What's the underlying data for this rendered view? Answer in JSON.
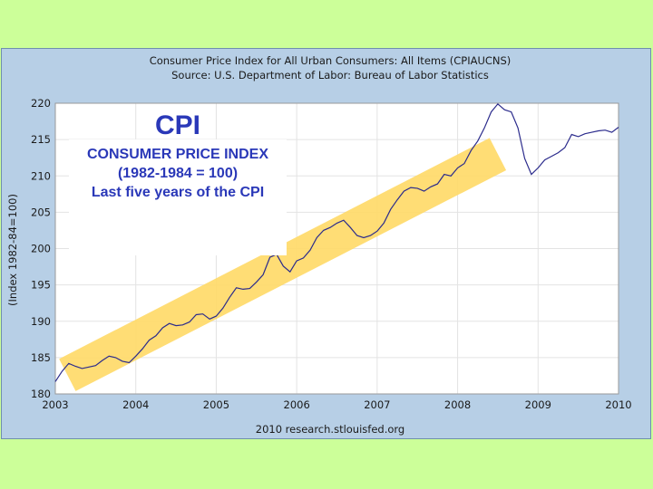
{
  "chart_data": {
    "type": "line",
    "title": "Consumer Price Index for All Urban Consumers: All Items (CPIAUCNS)",
    "subtitle": "Source: U.S. Department of Labor: Bureau of Labor Statistics",
    "ylabel": "(Index 1982-84=100)",
    "xlabel": "",
    "source_note": "2010 research.stlouisfed.org",
    "xlim": [
      2003,
      2010
    ],
    "ylim": [
      180,
      220
    ],
    "x_ticks": [
      "2003",
      "2004",
      "2005",
      "2006",
      "2007",
      "2008",
      "2009",
      "2010"
    ],
    "y_ticks": [
      "180",
      "185",
      "190",
      "195",
      "200",
      "205",
      "210",
      "215",
      "220"
    ],
    "grid": true,
    "annotation": {
      "title": "CPI",
      "lines": [
        "CONSUMER PRICE INDEX",
        "(1982-1984 = 100)",
        "Last five years of the CPI"
      ]
    },
    "trend_band": {
      "color": "#ffd966",
      "x": [
        2003.15,
        2008.5
      ],
      "y": [
        182.6,
        213.0
      ]
    },
    "series": [
      {
        "color": "#2b2b8c",
        "x": [
          2003.0,
          2003.083,
          2003.167,
          2003.25,
          2003.333,
          2003.417,
          2003.5,
          2003.583,
          2003.667,
          2003.75,
          2003.833,
          2003.917,
          2004.0,
          2004.083,
          2004.167,
          2004.25,
          2004.333,
          2004.417,
          2004.5,
          2004.583,
          2004.667,
          2004.75,
          2004.833,
          2004.917,
          2005.0,
          2005.083,
          2005.167,
          2005.25,
          2005.333,
          2005.417,
          2005.5,
          2005.583,
          2005.667,
          2005.75,
          2005.833,
          2005.917,
          2006.0,
          2006.083,
          2006.167,
          2006.25,
          2006.333,
          2006.417,
          2006.5,
          2006.583,
          2006.667,
          2006.75,
          2006.833,
          2006.917,
          2007.0,
          2007.083,
          2007.167,
          2007.25,
          2007.333,
          2007.417,
          2007.5,
          2007.583,
          2007.667,
          2007.75,
          2007.833,
          2007.917,
          2008.0,
          2008.083,
          2008.167,
          2008.25,
          2008.333,
          2008.417,
          2008.5,
          2008.583,
          2008.667,
          2008.75,
          2008.833,
          2008.917,
          2009.0,
          2009.083,
          2009.167,
          2009.25,
          2009.333,
          2009.417,
          2009.5,
          2009.583,
          2009.667,
          2009.75,
          2009.833,
          2009.917,
          2010.0
        ],
        "y": [
          181.7,
          183.1,
          184.2,
          183.8,
          183.5,
          183.7,
          183.9,
          184.6,
          185.2,
          185.0,
          184.5,
          184.3,
          185.2,
          186.2,
          187.4,
          188.0,
          189.1,
          189.7,
          189.4,
          189.5,
          189.9,
          190.9,
          191.0,
          190.3,
          190.7,
          191.8,
          193.3,
          194.6,
          194.4,
          194.5,
          195.4,
          196.4,
          198.8,
          199.2,
          197.6,
          196.8,
          198.3,
          198.7,
          199.8,
          201.5,
          202.5,
          202.9,
          203.5,
          203.9,
          202.9,
          201.8,
          201.5,
          201.8,
          202.4,
          203.5,
          205.4,
          206.7,
          207.9,
          208.4,
          208.3,
          207.9,
          208.5,
          208.9,
          210.2,
          210.0,
          211.1,
          211.7,
          213.5,
          214.8,
          216.6,
          218.8,
          219.9,
          219.1,
          218.8,
          216.6,
          212.4,
          210.2,
          211.1,
          212.2,
          212.7,
          213.2,
          213.9,
          215.7,
          215.4,
          215.8,
          216.0,
          216.2,
          216.3,
          216.0,
          216.7
        ]
      }
    ]
  }
}
